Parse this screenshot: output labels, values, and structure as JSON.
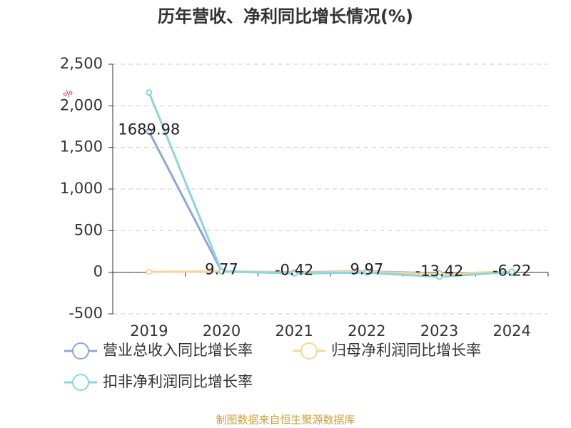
{
  "chart_data": {
    "type": "line",
    "title": "历年营收、净利同比增长情况(%)",
    "y_unit": "%",
    "source": "制图数据来自恒生聚源数据库",
    "categories": [
      "2019",
      "2020",
      "2021",
      "2022",
      "2023",
      "2024"
    ],
    "series": [
      {
        "name": "营业总收入同比增长率",
        "color": "#8ea6d6",
        "values": [
          1689.98,
          9.77,
          -0.42,
          9.97,
          -13.42,
          -6.22
        ],
        "show_labels": true
      },
      {
        "name": "归母净利润同比增长率",
        "color": "#f8d49c",
        "values": [
          5,
          10,
          -5,
          5,
          -20,
          10
        ],
        "show_labels": false
      },
      {
        "name": "扣非净利润同比增长率",
        "color": "#8ad6d8",
        "values": [
          2160,
          10,
          -15,
          -5,
          -55,
          5
        ],
        "show_labels": false
      }
    ],
    "ylim": [
      -500,
      2500
    ],
    "yticks": [
      -500,
      0,
      500,
      {
        "value": 1000,
        "label": "1,000"
      },
      {
        "value": 1500,
        "label": "1,500"
      },
      {
        "value": 2000,
        "label": "2,000"
      },
      {
        "value": 2500,
        "label": "2,500"
      }
    ],
    "grid": true
  }
}
